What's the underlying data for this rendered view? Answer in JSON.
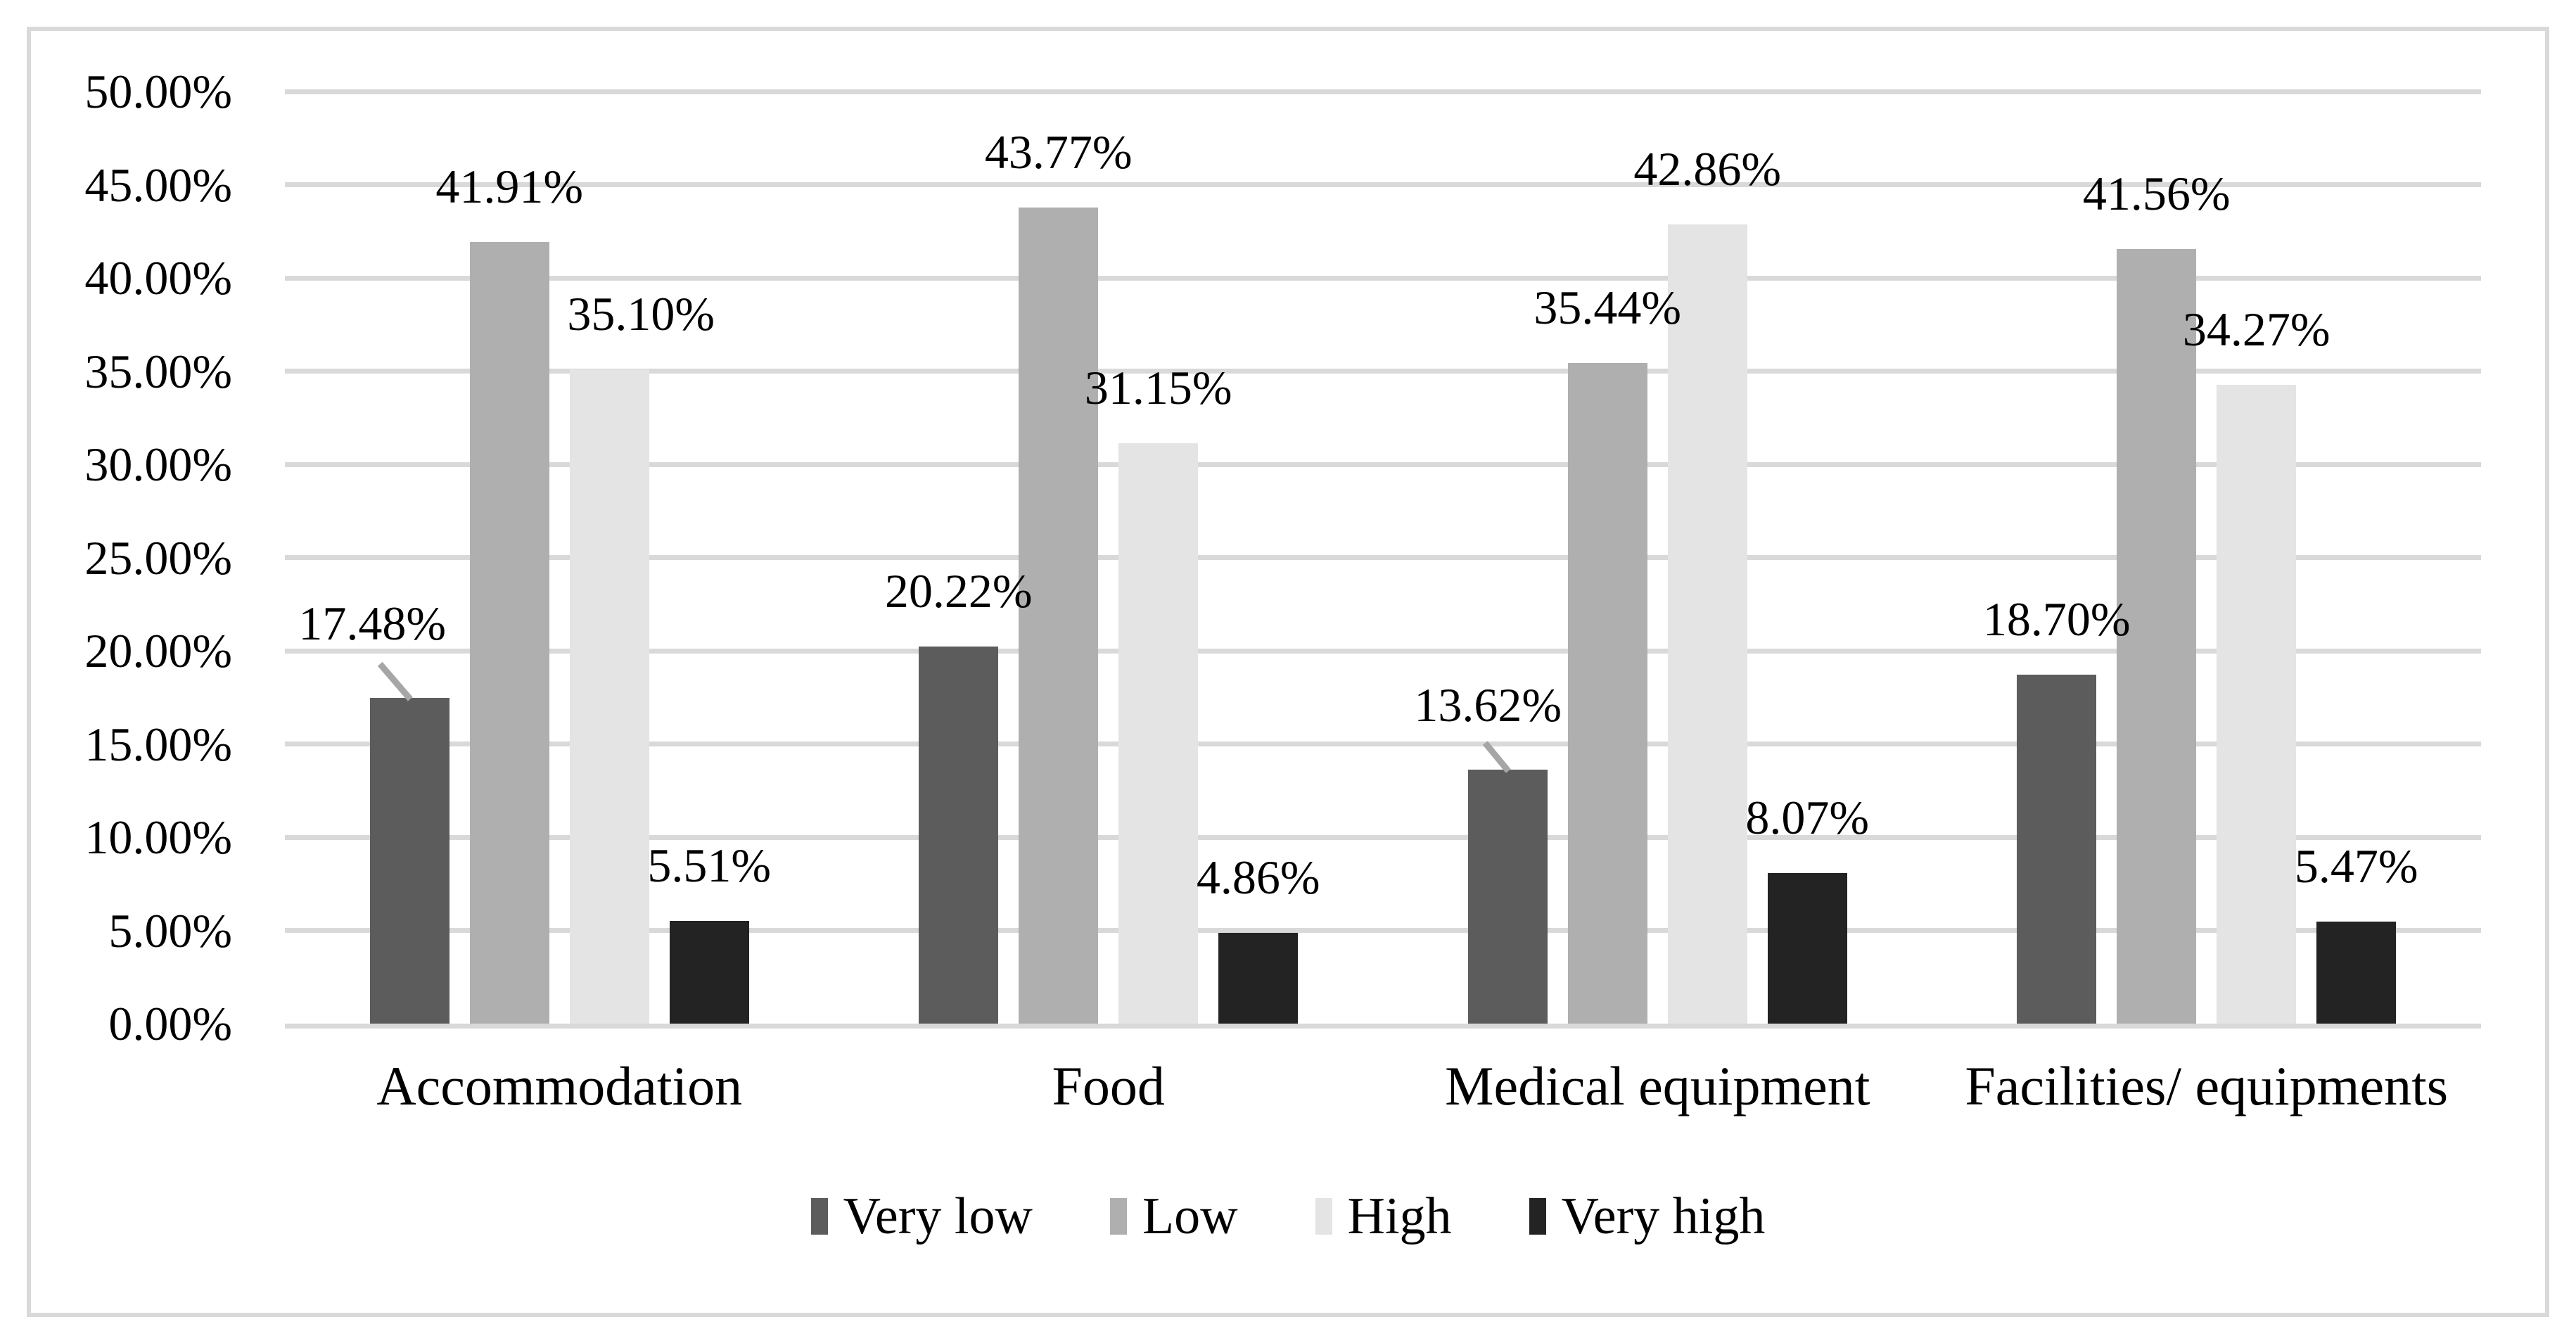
{
  "figure": {
    "background": "#ffffff",
    "border_color": "#d9d9d9"
  },
  "chart_data": {
    "type": "bar",
    "title": "",
    "xlabel": "",
    "ylabel": "",
    "categories": [
      "Accommodation",
      "Food",
      "Medical equipment",
      "Facilities/ equipments"
    ],
    "series": [
      {
        "name": "Very low",
        "color": "#5C5C5C",
        "values": [
          17.48,
          20.22,
          13.62,
          18.7
        ],
        "labels": [
          "17.48%",
          "20.22%",
          "13.62%",
          "18.70%"
        ]
      },
      {
        "name": "Low",
        "color": "#AFAFAF",
        "values": [
          41.91,
          43.77,
          35.44,
          41.56
        ],
        "labels": [
          "41.91%",
          "43.77%",
          "35.44%",
          "41.56%"
        ]
      },
      {
        "name": "High",
        "color": "#E5E4E4",
        "values": [
          35.1,
          31.15,
          42.86,
          34.27
        ],
        "labels": [
          "35.10%",
          "31.15%",
          "42.86%",
          "34.27%"
        ]
      },
      {
        "name": "Very high",
        "color": "#232323",
        "values": [
          5.51,
          4.86,
          8.07,
          5.47
        ],
        "labels": [
          "5.51%",
          "4.86%",
          "8.07%",
          "5.47%"
        ]
      }
    ],
    "ylim": [
      0,
      50
    ],
    "y_ticks": [
      "0.00%",
      "5.00%",
      "10.00%",
      "15.00%",
      "20.00%",
      "25.00%",
      "30.00%",
      "35.00%",
      "40.00%",
      "45.00%",
      "50.00%"
    ],
    "grid": "horizontal-major",
    "gridline_color": "#d9d9d9",
    "legend_position": "bottom",
    "text_color": "#000000",
    "leader_line_color": "#A6A6A6",
    "label_overrides": [
      {
        "series": 0,
        "category": 0,
        "dx": -53,
        "gap": 72,
        "leader": {
          "x1": -42,
          "y1": -48,
          "x2": 1,
          "y2": 2
        }
      },
      {
        "series": 0,
        "category": 2,
        "dx": -28,
        "gap": 58,
        "leader": {
          "x1": -32,
          "y1": -38,
          "x2": 1,
          "y2": 2
        }
      },
      {
        "series": 2,
        "category": 0,
        "dx": 45,
        "gap": 45,
        "leader": null
      }
    ]
  }
}
